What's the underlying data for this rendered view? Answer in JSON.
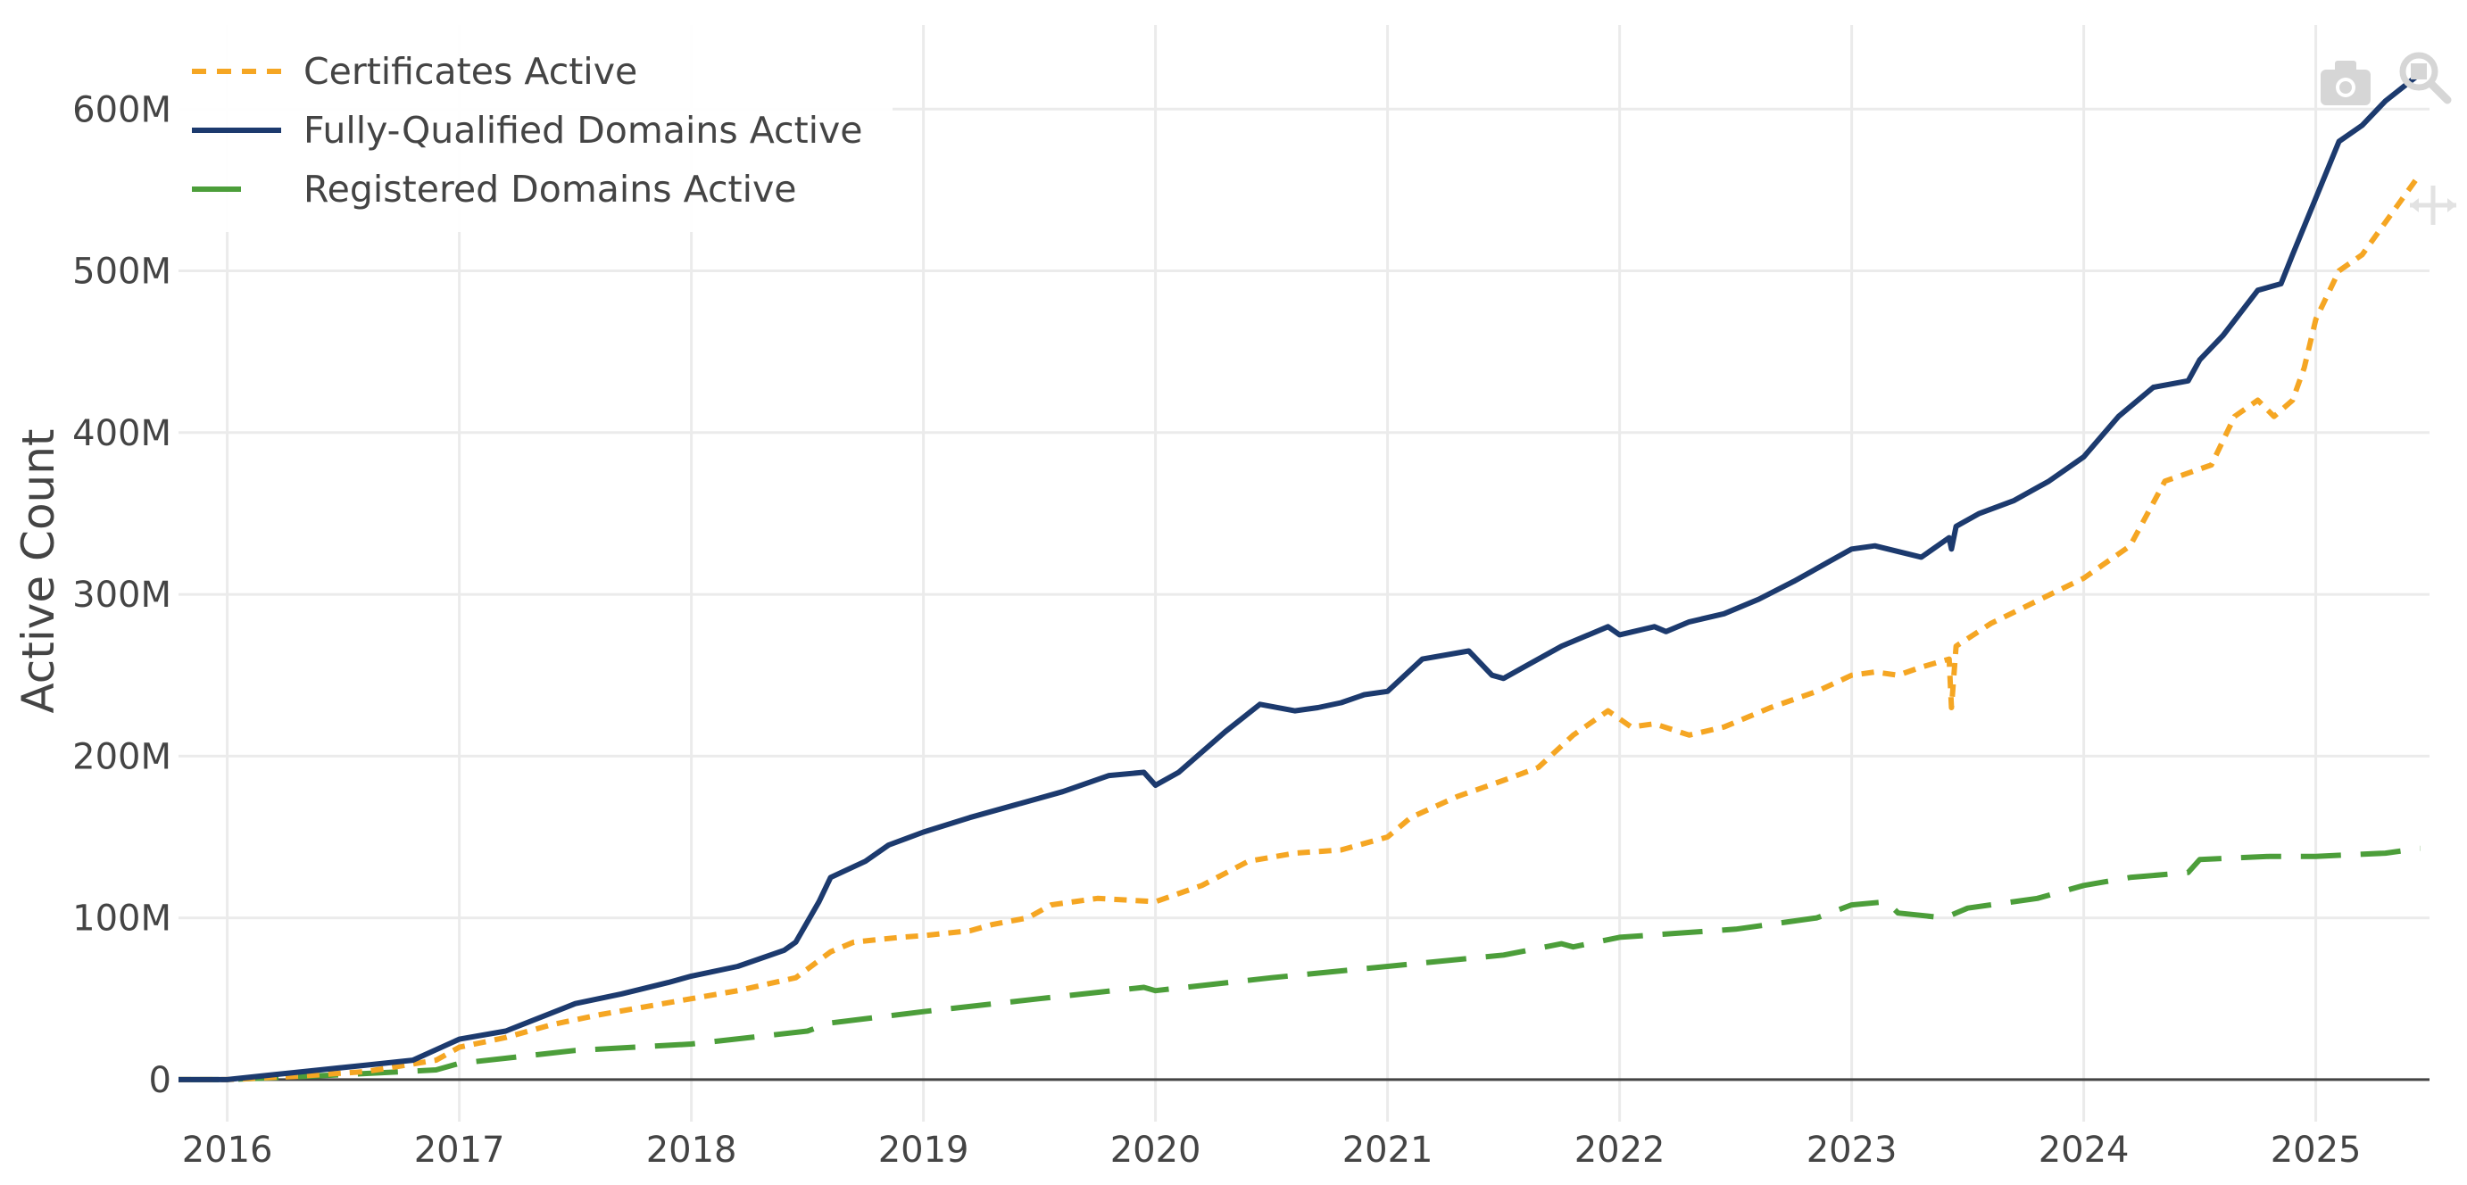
{
  "chart_data": {
    "type": "line",
    "title": "",
    "xlabel": "",
    "ylabel": "Active Count",
    "xlim": [
      2015.79,
      2025.49
    ],
    "ylim": [
      -26000000,
      652000000
    ],
    "x_ticks": [
      2016,
      2017,
      2018,
      2019,
      2020,
      2021,
      2022,
      2023,
      2024,
      2025
    ],
    "x_tick_labels": [
      "2016",
      "2017",
      "2018",
      "2019",
      "2020",
      "2021",
      "2022",
      "2023",
      "2024",
      "2025"
    ],
    "y_ticks": [
      0,
      100000000,
      200000000,
      300000000,
      400000000,
      500000000,
      600000000
    ],
    "y_tick_labels": [
      "0",
      "100M",
      "200M",
      "300M",
      "400M",
      "500M",
      "600M"
    ],
    "grid": true,
    "legend_position": "top-left",
    "series": [
      {
        "name": "Certificates Active",
        "color": "#f5a623",
        "dash": "dot",
        "x": [
          2015.79,
          2016.0,
          2016.3,
          2016.6,
          2016.9,
          2017.0,
          2017.2,
          2017.4,
          2017.6,
          2017.8,
          2018.0,
          2018.2,
          2018.45,
          2018.6,
          2018.7,
          2018.9,
          2019.0,
          2019.2,
          2019.3,
          2019.45,
          2019.55,
          2019.75,
          2020.0,
          2020.2,
          2020.4,
          2020.6,
          2020.8,
          2021.0,
          2021.1,
          2021.3,
          2021.5,
          2021.65,
          2021.8,
          2021.95,
          2022.05,
          2022.15,
          2022.3,
          2022.45,
          2022.65,
          2022.85,
          2023.0,
          2023.1,
          2023.2,
          2023.3,
          2023.42,
          2023.43,
          2023.45,
          2023.6,
          2023.8,
          2024.0,
          2024.2,
          2024.35,
          2024.55,
          2024.65,
          2024.75,
          2024.82,
          2024.9,
          2024.95,
          2025.0,
          2025.1,
          2025.2,
          2025.3,
          2025.4,
          2025.45
        ],
        "y": [
          0,
          0,
          2000000,
          5000000,
          12000000,
          20000000,
          26000000,
          34000000,
          40000000,
          45000000,
          50000000,
          55000000,
          63000000,
          79000000,
          85000000,
          88000000,
          89000000,
          92000000,
          96000000,
          100000000,
          108000000,
          112000000,
          110000000,
          120000000,
          135000000,
          140000000,
          142000000,
          150000000,
          162000000,
          175000000,
          185000000,
          193000000,
          213000000,
          228000000,
          218000000,
          220000000,
          213000000,
          218000000,
          230000000,
          240000000,
          250000000,
          252000000,
          250000000,
          255000000,
          260000000,
          230000000,
          268000000,
          282000000,
          296000000,
          310000000,
          330000000,
          370000000,
          380000000,
          410000000,
          420000000,
          410000000,
          420000000,
          440000000,
          470000000,
          500000000,
          510000000,
          530000000,
          550000000,
          560000000
        ]
      },
      {
        "name": "Fully-Qualified Domains Active",
        "color": "#1c3a6e",
        "dash": "solid",
        "x": [
          2015.79,
          2016.0,
          2016.2,
          2016.4,
          2016.6,
          2016.8,
          2017.0,
          2017.2,
          2017.5,
          2017.7,
          2017.9,
          2018.0,
          2018.2,
          2018.4,
          2018.45,
          2018.55,
          2018.6,
          2018.75,
          2018.85,
          2019.0,
          2019.2,
          2019.4,
          2019.6,
          2019.8,
          2019.95,
          2020.0,
          2020.1,
          2020.3,
          2020.45,
          2020.6,
          2020.7,
          2020.8,
          2020.9,
          2021.0,
          2021.15,
          2021.35,
          2021.45,
          2021.5,
          2021.6,
          2021.75,
          2021.95,
          2022.0,
          2022.15,
          2022.2,
          2022.3,
          2022.45,
          2022.6,
          2022.75,
          2022.9,
          2023.0,
          2023.1,
          2023.3,
          2023.42,
          2023.43,
          2023.45,
          2023.55,
          2023.7,
          2023.85,
          2024.0,
          2024.15,
          2024.3,
          2024.45,
          2024.5,
          2024.6,
          2024.75,
          2024.85,
          2024.9,
          2025.0,
          2025.1,
          2025.2,
          2025.3,
          2025.45
        ],
        "y": [
          0,
          0,
          3000000,
          6000000,
          9000000,
          12000000,
          25000000,
          30000000,
          47000000,
          53000000,
          60000000,
          64000000,
          70000000,
          80000000,
          85000000,
          110000000,
          125000000,
          135000000,
          145000000,
          153000000,
          162000000,
          170000000,
          178000000,
          188000000,
          190000000,
          182000000,
          190000000,
          215000000,
          232000000,
          228000000,
          230000000,
          233000000,
          238000000,
          240000000,
          260000000,
          265000000,
          250000000,
          248000000,
          256000000,
          268000000,
          280000000,
          275000000,
          280000000,
          277000000,
          283000000,
          288000000,
          297000000,
          308000000,
          320000000,
          328000000,
          330000000,
          323000000,
          335000000,
          328000000,
          342000000,
          350000000,
          358000000,
          370000000,
          385000000,
          410000000,
          428000000,
          432000000,
          445000000,
          460000000,
          488000000,
          492000000,
          510000000,
          545000000,
          580000000,
          590000000,
          605000000,
          622000000
        ]
      },
      {
        "name": "Registered Domains Active",
        "color": "#4c9e3a",
        "dash": "longdash",
        "x": [
          2015.79,
          2016.0,
          2016.5,
          2016.9,
          2017.0,
          2017.5,
          2018.0,
          2018.5,
          2018.6,
          2019.0,
          2019.5,
          2019.95,
          2020.0,
          2020.5,
          2021.0,
          2021.5,
          2021.75,
          2021.8,
          2022.0,
          2022.5,
          2022.85,
          2023.0,
          2023.15,
          2023.2,
          2023.4,
          2023.5,
          2023.8,
          2024.0,
          2024.2,
          2024.45,
          2024.5,
          2024.8,
          2025.0,
          2025.3,
          2025.45
        ],
        "y": [
          0,
          0,
          3000000,
          6000000,
          10000000,
          18000000,
          22000000,
          30000000,
          35000000,
          42000000,
          50000000,
          57000000,
          55000000,
          63000000,
          70000000,
          77000000,
          84000000,
          82000000,
          88000000,
          93000000,
          100000000,
          108000000,
          110000000,
          103000000,
          100000000,
          106000000,
          112000000,
          120000000,
          125000000,
          128000000,
          136000000,
          138000000,
          138000000,
          140000000,
          143000000
        ]
      }
    ]
  },
  "modebar": {
    "camera_icon": "camera-icon",
    "zoom_icon": "zoom-icon",
    "pan_icon": "pan-icon"
  }
}
